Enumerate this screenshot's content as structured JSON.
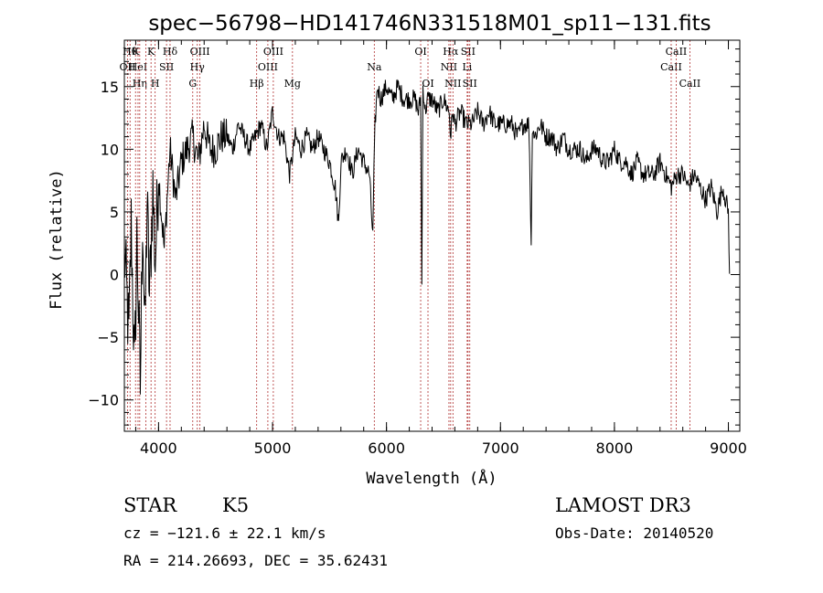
{
  "chart_data": {
    "type": "line",
    "title": "spec−56798−HD141746N331518M01_sp11−131.fits",
    "xlabel": "Wavelength (Å)",
    "ylabel": "Flux (relative)",
    "xlim": [
      3700,
      9100
    ],
    "ylim": [
      -12.5,
      18.7
    ],
    "grid": false,
    "x_ticks": [
      4000,
      5000,
      6000,
      7000,
      8000,
      9000
    ],
    "y_ticks": [
      -10,
      -5,
      0,
      5,
      10,
      15
    ],
    "series": [
      {
        "x": [
          3700,
          3740,
          3760,
          3790,
          3810,
          3840,
          3860,
          3880,
          3900,
          3920,
          3950,
          3970,
          4000,
          4050,
          4100,
          4150,
          4200,
          4250,
          4300,
          4350,
          4400,
          4450,
          4500,
          4550,
          4600,
          4650,
          4700,
          4750,
          4800,
          4850,
          4900,
          4950,
          5000,
          5050,
          5100,
          5150,
          5200,
          5250,
          5300,
          5350,
          5400,
          5450,
          5500,
          5550,
          5580,
          5600,
          5650,
          5700,
          5750,
          5800,
          5850,
          5880,
          5890,
          5900,
          5920,
          5950,
          6000,
          6050,
          6100,
          6150,
          6200,
          6250,
          6280,
          6300,
          6310,
          6320,
          6340,
          6360,
          6400,
          6450,
          6500,
          6550,
          6563,
          6580,
          6600,
          6650,
          6700,
          6750,
          6800,
          6850,
          6900,
          6950,
          7000,
          7050,
          7100,
          7150,
          7200,
          7250,
          7270,
          7280,
          7300,
          7350,
          7400,
          7450,
          7500,
          7550,
          7600,
          7650,
          7700,
          7750,
          7800,
          7850,
          7900,
          7950,
          8000,
          8050,
          8100,
          8150,
          8200,
          8250,
          8300,
          8350,
          8400,
          8450,
          8500,
          8550,
          8600,
          8650,
          8700,
          8750,
          8800,
          8850,
          8900,
          8950,
          9000,
          9010
        ],
        "y": [
          2,
          -5,
          4,
          -8,
          3,
          -9,
          5,
          -5,
          6,
          -2,
          7,
          1,
          8,
          2,
          10,
          6,
          9,
          10,
          11,
          9,
          12,
          10,
          10,
          11,
          11,
          10,
          12,
          11,
          10,
          11,
          12,
          10,
          13,
          11,
          11,
          8,
          11,
          10,
          11,
          10,
          11,
          10,
          9,
          7,
          4,
          9,
          10,
          8,
          10,
          9,
          8,
          3,
          8,
          12,
          15,
          14,
          15,
          14,
          15,
          14,
          14,
          14,
          13,
          14,
          -1,
          15,
          13,
          14,
          14,
          13,
          14,
          13,
          11,
          13,
          12,
          13,
          12,
          12,
          13,
          12,
          13,
          12,
          12,
          12,
          12,
          11,
          12,
          12,
          2.5,
          12,
          11,
          12,
          11,
          11,
          10,
          11,
          10,
          10,
          10,
          9,
          10,
          10,
          9,
          9,
          10,
          9,
          9,
          8,
          9,
          8,
          8,
          8,
          9,
          8,
          7,
          8,
          8,
          7,
          8,
          7,
          6,
          7,
          5,
          7,
          5,
          0
        ]
      }
    ],
    "line_markers": [
      {
        "wl": 3750,
        "label": "Hθ",
        "row": 0
      },
      {
        "wl": 3727,
        "label": "OII",
        "row": 1
      },
      {
        "wl": 3798,
        "label": "K",
        "row": 0
      },
      {
        "wl": 3820,
        "label": "HeI",
        "row": 1
      },
      {
        "wl": 3835,
        "label": "Hη",
        "row": 2
      },
      {
        "wl": 3889,
        "label": "",
        "row": -1
      },
      {
        "wl": 3934,
        "label": "K",
        "row": 0
      },
      {
        "wl": 3970,
        "label": "H",
        "row": 2
      },
      {
        "wl": 4070,
        "label": "SII",
        "row": 1
      },
      {
        "wl": 4101,
        "label": "Hδ",
        "row": 0
      },
      {
        "wl": 4300,
        "label": "G",
        "row": 2
      },
      {
        "wl": 4340,
        "label": "Hγ",
        "row": 1
      },
      {
        "wl": 4363,
        "label": "OIII",
        "row": 0
      },
      {
        "wl": 4861,
        "label": "Hβ",
        "row": 2
      },
      {
        "wl": 4959,
        "label": "OIII",
        "row": 1
      },
      {
        "wl": 5007,
        "label": "OIII",
        "row": 0
      },
      {
        "wl": 5175,
        "label": "Mg",
        "row": 2
      },
      {
        "wl": 5893,
        "label": "Na",
        "row": 1
      },
      {
        "wl": 6300,
        "label": "OI",
        "row": 0
      },
      {
        "wl": 6364,
        "label": "OI",
        "row": 2
      },
      {
        "wl": 6548,
        "label": "NII",
        "row": 1
      },
      {
        "wl": 6563,
        "label": "Hα",
        "row": 0
      },
      {
        "wl": 6583,
        "label": "NII",
        "row": 2
      },
      {
        "wl": 6716,
        "label": "SII",
        "row": 0
      },
      {
        "wl": 6708,
        "label": "Li",
        "row": 1
      },
      {
        "wl": 6731,
        "label": "SII",
        "row": 2
      },
      {
        "wl": 8498,
        "label": "CaII",
        "row": 1
      },
      {
        "wl": 8542,
        "label": "CaII",
        "row": 0
      },
      {
        "wl": 8662,
        "label": "CaII",
        "row": 2
      }
    ]
  },
  "info": {
    "class_label": "STAR",
    "subclass": "K5",
    "cz": "cz = −121.6 ± 22.1 km/s",
    "coords": "RA = 214.26693, DEC =  35.62431",
    "survey": "LAMOST DR3",
    "obs_date": "Obs-Date: 20140520"
  },
  "colors": {
    "marker_line": "#b03030",
    "spectrum": "#000000",
    "axes": "#000000"
  }
}
